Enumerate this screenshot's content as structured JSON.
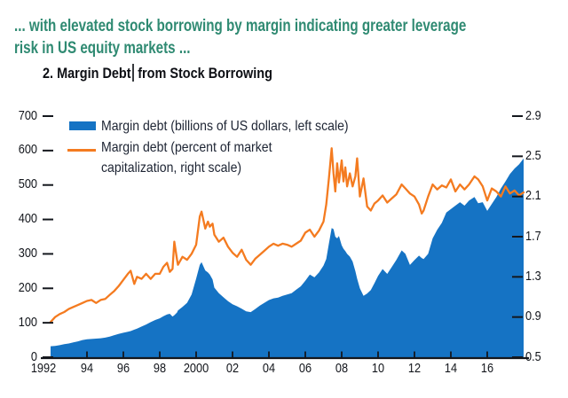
{
  "header": {
    "line1": "... with elevated stock borrowing by margin indicating greater leverage",
    "line2": "risk in US equity markets ..."
  },
  "chart_title": {
    "part1": "2. Margin Debt",
    "part2": "from Stock Borrowing"
  },
  "legend": {
    "item1": {
      "label": "Margin debt (billions of US dollars, left scale)"
    },
    "item2": {
      "line1": "Margin debt (percent of market",
      "line2": "capitalization, right scale)"
    }
  },
  "colors": {
    "area_blue": "#1573c4",
    "line_orange": "#f47b20",
    "lead_text": "#2f8a72",
    "title_ink": "#0d0f14",
    "chart_ink": "#14171d",
    "label_ink": "#1d2433"
  },
  "chart_data": {
    "type": "area",
    "title": "2. Margin Debt from Stock Borrowing",
    "grid": false,
    "legend_position": "top-left",
    "x": [
      1992,
      1992.25,
      1992.5,
      1992.75,
      1993,
      1993.25,
      1993.5,
      1993.75,
      1994,
      1994.25,
      1994.5,
      1994.75,
      1995,
      1995.25,
      1995.5,
      1995.75,
      1996,
      1996.25,
      1996.4,
      1996.6,
      1996.75,
      1997,
      1997.25,
      1997.5,
      1997.75,
      1998,
      1998.2,
      1998.4,
      1998.55,
      1998.7,
      1998.8,
      1998.95,
      1999,
      1999.25,
      1999.5,
      1999.75,
      2000,
      2000.2,
      2000.3,
      2000.5,
      2000.65,
      2000.75,
      2000.9,
      2001,
      2001.25,
      2001.5,
      2001.75,
      2002,
      2002.25,
      2002.5,
      2002.75,
      2003,
      2003.25,
      2003.5,
      2003.75,
      2004,
      2004.25,
      2004.5,
      2004.75,
      2005,
      2005.25,
      2005.5,
      2005.75,
      2006,
      2006.25,
      2006.5,
      2006.75,
      2007,
      2007.15,
      2007.3,
      2007.45,
      2007.55,
      2007.65,
      2007.75,
      2007.85,
      2008,
      2008.1,
      2008.2,
      2008.3,
      2008.45,
      2008.6,
      2008.75,
      2008.85,
      2009,
      2009.2,
      2009.4,
      2009.6,
      2009.8,
      2010,
      2010.25,
      2010.5,
      2010.75,
      2011,
      2011.3,
      2011.5,
      2011.75,
      2012,
      2012.25,
      2012.4,
      2012.5,
      2012.75,
      2013,
      2013.25,
      2013.5,
      2013.75,
      2014,
      2014.25,
      2014.5,
      2014.75,
      2015,
      2015.3,
      2015.5,
      2015.75,
      2016,
      2016.25,
      2016.5,
      2016.75,
      2017,
      2017.25,
      2017.5,
      2017.75,
      2018
    ],
    "series": [
      {
        "name": "Margin debt (billions of US dollars, left scale)",
        "type": "area",
        "axis": "left",
        "color": "#1573c4",
        "values": [
          32,
          33,
          35,
          38,
          40,
          43,
          46,
          50,
          52,
          53,
          54,
          55,
          57,
          60,
          64,
          68,
          71,
          74,
          76,
          80,
          83,
          89,
          95,
          102,
          108,
          113,
          119,
          124,
          126,
          118,
          122,
          130,
          136,
          146,
          158,
          182,
          228,
          268,
          276,
          252,
          246,
          240,
          226,
          202,
          186,
          174,
          163,
          154,
          148,
          141,
          133,
          131,
          140,
          150,
          158,
          166,
          171,
          173,
          178,
          182,
          186,
          196,
          206,
          222,
          240,
          232,
          246,
          266,
          285,
          330,
          375,
          372,
          350,
          345,
          352,
          325,
          315,
          308,
          300,
          292,
          278,
          250,
          228,
          200,
          178,
          185,
          195,
          215,
          236,
          256,
          242,
          262,
          282,
          310,
          300,
          268,
          282,
          295,
          288,
          285,
          300,
          345,
          370,
          390,
          420,
          430,
          440,
          450,
          440,
          455,
          465,
          447,
          450,
          425,
          445,
          465,
          490,
          510,
          532,
          548,
          560,
          577
        ]
      },
      {
        "name": "Margin debt (percent of market capitalization, right scale)",
        "type": "line",
        "axis": "right",
        "color": "#f47b20",
        "values": [
          0.85,
          0.9,
          0.93,
          0.95,
          0.98,
          1.0,
          1.02,
          1.04,
          1.06,
          1.07,
          1.04,
          1.07,
          1.08,
          1.12,
          1.16,
          1.21,
          1.27,
          1.33,
          1.36,
          1.23,
          1.3,
          1.28,
          1.33,
          1.28,
          1.33,
          1.33,
          1.4,
          1.44,
          1.35,
          1.38,
          1.65,
          1.47,
          1.42,
          1.5,
          1.47,
          1.53,
          1.62,
          1.9,
          1.95,
          1.78,
          1.85,
          1.8,
          1.83,
          1.72,
          1.65,
          1.69,
          1.6,
          1.54,
          1.5,
          1.57,
          1.47,
          1.42,
          1.48,
          1.52,
          1.56,
          1.6,
          1.63,
          1.61,
          1.63,
          1.62,
          1.6,
          1.63,
          1.66,
          1.74,
          1.77,
          1.7,
          1.76,
          1.85,
          2.02,
          2.28,
          2.58,
          2.33,
          2.15,
          2.43,
          2.24,
          2.46,
          2.25,
          2.39,
          2.2,
          2.33,
          2.2,
          2.3,
          2.48,
          2.1,
          2.28,
          2.0,
          1.96,
          2.03,
          2.06,
          2.11,
          2.04,
          2.08,
          2.12,
          2.22,
          2.18,
          2.13,
          2.1,
          2.02,
          1.93,
          1.96,
          2.1,
          2.22,
          2.17,
          2.21,
          2.19,
          2.27,
          2.15,
          2.22,
          2.17,
          2.22,
          2.3,
          2.27,
          2.2,
          2.06,
          2.18,
          2.15,
          2.1,
          2.2,
          2.13,
          2.16,
          2.11,
          2.14
        ]
      }
    ],
    "left_axis": {
      "range": [
        0,
        700
      ],
      "ticks": [
        0,
        100,
        200,
        300,
        400,
        500,
        600,
        700
      ]
    },
    "right_axis": {
      "range": [
        0.5,
        2.9
      ],
      "ticks": [
        0.5,
        0.9,
        1.3,
        1.7,
        2.1,
        2.5,
        2.9
      ]
    },
    "x_axis": {
      "range": [
        1992,
        2018
      ],
      "ticks": [
        1992,
        1994,
        1996,
        1998,
        2000,
        2002,
        2004,
        2006,
        2008,
        2010,
        2012,
        2014,
        2016
      ],
      "tick_labels": [
        "1992",
        "94",
        "96",
        "98",
        "2000",
        "02",
        "04",
        "06",
        "08",
        "10",
        "12",
        "14",
        "16"
      ]
    }
  }
}
